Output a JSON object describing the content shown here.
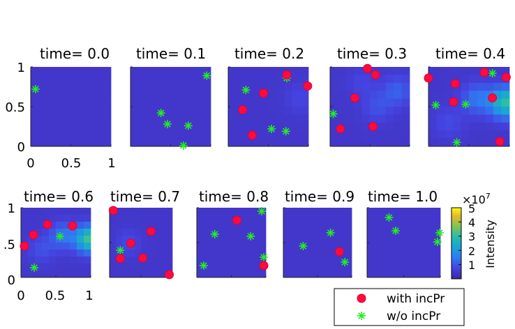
{
  "chart_data": {
    "type": "scatter",
    "figure": "Intensity heatmaps over time with detected points",
    "xlim": [
      0,
      1
    ],
    "ylim": [
      0,
      1
    ],
    "x_ticks": [
      "0",
      "0.5",
      "1"
    ],
    "y_ticks": [
      "1",
      "0.5",
      "0"
    ],
    "row2_x_ticks": [
      "0",
      "0.5",
      "1"
    ],
    "row2_y_ticks": [
      "1",
      ".5",
      "0"
    ],
    "legend": {
      "position": "bottom-right",
      "entries": [
        {
          "label": "with incPr",
          "marker": "circle",
          "color": "#ff0a3c"
        },
        {
          "label": "w/o incPr",
          "marker": "asterisk",
          "color": "#22ee22"
        }
      ]
    },
    "colorbar": {
      "label": "Intensity",
      "exponent": "×10",
      "exponent_power": "7",
      "ticks": [
        "5",
        "4",
        "3",
        "2",
        "1"
      ],
      "tick_values": [
        5,
        4,
        3,
        2,
        1
      ],
      "range": [
        0,
        5
      ]
    },
    "panels": [
      {
        "title": "time= 0.0",
        "with_incPr": [],
        "without_incPr": [
          [
            0.06,
            0.72
          ]
        ],
        "hot": []
      },
      {
        "title": "time= 0.1",
        "with_incPr": [],
        "without_incPr": [
          [
            0.95,
            0.89
          ],
          [
            0.38,
            0.42
          ],
          [
            0.46,
            0.28
          ],
          [
            0.72,
            0.26
          ],
          [
            0.66,
            0.01
          ]
        ],
        "hot": []
      },
      {
        "title": "time= 0.2",
        "with_incPr": [
          [
            0.73,
            0.9
          ],
          [
            0.99,
            0.76
          ],
          [
            0.44,
            0.67
          ],
          [
            0.18,
            0.46
          ],
          [
            0.3,
            0.14
          ]
        ],
        "without_incPr": [
          [
            0.73,
            0.86
          ],
          [
            0.22,
            0.71
          ],
          [
            0.54,
            0.22
          ],
          [
            0.72,
            0.19
          ]
        ],
        "hot": [
          [
            0.9,
            0.6,
            0.35
          ]
        ]
      },
      {
        "title": "time= 0.3",
        "with_incPr": [
          [
            0.47,
            0.98
          ],
          [
            0.57,
            0.9
          ],
          [
            0.31,
            0.61
          ],
          [
            0.13,
            0.22
          ],
          [
            0.54,
            0.25
          ]
        ],
        "without_incPr": [
          [
            0.04,
            0.41
          ]
        ],
        "hot": [
          [
            0.85,
            0.7,
            0.7
          ],
          [
            0.6,
            0.5,
            0.5
          ],
          [
            0.4,
            0.8,
            0.3
          ]
        ]
      },
      {
        "title": "time= 0.4",
        "with_incPr": [
          [
            0.0,
            0.86
          ],
          [
            0.33,
            0.79
          ],
          [
            0.69,
            0.93
          ],
          [
            0.96,
            0.87
          ],
          [
            0.79,
            0.61
          ],
          [
            0.31,
            0.56
          ],
          [
            0.88,
            0.06
          ]
        ],
        "without_incPr": [
          [
            0.79,
            0.92
          ],
          [
            0.09,
            0.52
          ],
          [
            0.46,
            0.53
          ],
          [
            0.35,
            0.05
          ]
        ],
        "hot": [
          [
            0.95,
            0.55,
            2.5
          ],
          [
            0.6,
            0.6,
            1.0
          ],
          [
            0.25,
            0.3,
            0.4
          ]
        ]
      },
      {
        "title": "time= 0.6",
        "with_incPr": [
          [
            0.18,
            0.61
          ],
          [
            0.38,
            0.76
          ],
          [
            0.05,
            0.45
          ],
          [
            0.74,
            0.74
          ]
        ],
        "without_incPr": [
          [
            0.56,
            0.59
          ],
          [
            0.19,
            0.14
          ]
        ],
        "hot": [
          [
            0.97,
            0.55,
            2.7
          ],
          [
            0.6,
            0.6,
            1.0
          ],
          [
            0.3,
            0.4,
            0.5
          ]
        ]
      },
      {
        "title": "time= 0.7",
        "with_incPr": [
          [
            0.06,
            0.96
          ],
          [
            0.66,
            0.66
          ],
          [
            0.34,
            0.49
          ],
          [
            0.17,
            0.27
          ],
          [
            0.53,
            0.28
          ],
          [
            0.95,
            0.04
          ]
        ],
        "without_incPr": [
          [
            0.17,
            0.39
          ]
        ],
        "hot": [
          [
            0.3,
            0.5,
            0.4
          ]
        ]
      },
      {
        "title": "time= 0.8",
        "with_incPr": [
          [
            0.58,
            0.82
          ],
          [
            0.97,
            0.17
          ]
        ],
        "without_incPr": [
          [
            0.94,
            0.95
          ],
          [
            0.26,
            0.62
          ],
          [
            0.78,
            0.59
          ],
          [
            0.97,
            0.29
          ],
          [
            0.1,
            0.17
          ]
        ],
        "hot": []
      },
      {
        "title": "time= 0.9",
        "with_incPr": [
          [
            0.82,
            0.37
          ]
        ],
        "without_incPr": [
          [
            0.69,
            0.64
          ],
          [
            0.29,
            0.45
          ],
          [
            0.9,
            0.22
          ]
        ],
        "hot": []
      },
      {
        "title": "time= 1.0",
        "with_incPr": [],
        "without_incPr": [
          [
            0.3,
            0.86
          ],
          [
            0.39,
            0.67
          ],
          [
            0.99,
            0.64
          ],
          [
            0.96,
            0.51
          ]
        ],
        "hot": []
      }
    ]
  }
}
